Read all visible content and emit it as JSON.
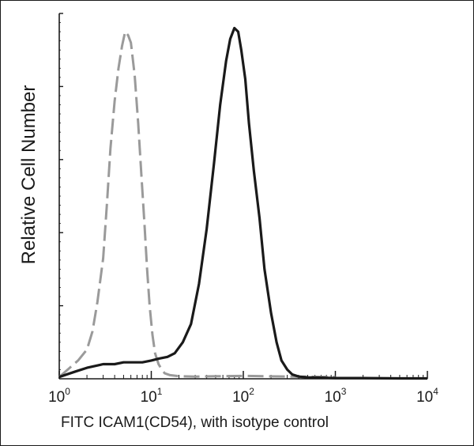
{
  "chart_data": {
    "type": "line",
    "title": "",
    "xlabel": "FITC  ICAM1(CD54), with isotype control",
    "ylabel": "Relative Cell Number",
    "x_scale": "log",
    "xlim": [
      1,
      10000
    ],
    "ylim": [
      0,
      1.0
    ],
    "x_ticks": [
      {
        "base": "10",
        "exp": "0",
        "value": 1
      },
      {
        "base": "10",
        "exp": "1",
        "value": 10
      },
      {
        "base": "10",
        "exp": "2",
        "value": 100
      },
      {
        "base": "10",
        "exp": "3",
        "value": 1000
      },
      {
        "base": "10",
        "exp": "4",
        "value": 10000
      }
    ],
    "grid": false,
    "legend": "none",
    "series": [
      {
        "style": "dashed",
        "color": "#9a9a9a",
        "x": [
          1.0,
          1.3,
          1.6,
          2.0,
          2.3,
          2.6,
          3.0,
          3.3,
          3.6,
          4.0,
          4.4,
          4.8,
          5.2,
          5.6,
          6.0,
          6.6,
          7.2,
          7.8,
          8.4,
          9.0,
          9.6,
          10.3,
          11,
          12,
          13,
          14,
          16,
          20,
          30,
          50,
          100,
          300,
          1000
        ],
        "y": [
          0.005,
          0.03,
          0.05,
          0.08,
          0.13,
          0.21,
          0.33,
          0.48,
          0.63,
          0.76,
          0.85,
          0.91,
          0.95,
          0.94,
          0.92,
          0.83,
          0.7,
          0.56,
          0.43,
          0.3,
          0.2,
          0.12,
          0.07,
          0.04,
          0.025,
          0.015,
          0.01,
          0.007,
          0.006,
          0.007,
          0.008,
          0.006,
          0.005
        ]
      },
      {
        "style": "solid",
        "color": "#1a1a1a",
        "x": [
          1.0,
          1.5,
          2.0,
          3.0,
          4.0,
          5.0,
          6.0,
          8.0,
          10,
          12,
          15,
          18,
          22,
          27,
          33,
          40,
          48,
          56,
          65,
          72,
          80,
          88,
          95,
          105,
          115,
          130,
          150,
          170,
          200,
          230,
          260,
          300,
          340,
          400,
          500,
          700,
          1000,
          2000,
          5000,
          10000
        ],
        "y": [
          0.005,
          0.02,
          0.03,
          0.04,
          0.04,
          0.045,
          0.045,
          0.045,
          0.05,
          0.055,
          0.06,
          0.07,
          0.1,
          0.15,
          0.26,
          0.41,
          0.59,
          0.75,
          0.87,
          0.93,
          0.96,
          0.95,
          0.9,
          0.82,
          0.7,
          0.57,
          0.44,
          0.3,
          0.18,
          0.1,
          0.05,
          0.025,
          0.012,
          0.006,
          0.004,
          0.003,
          0.002,
          0.002,
          0.001,
          0.001
        ]
      }
    ]
  }
}
